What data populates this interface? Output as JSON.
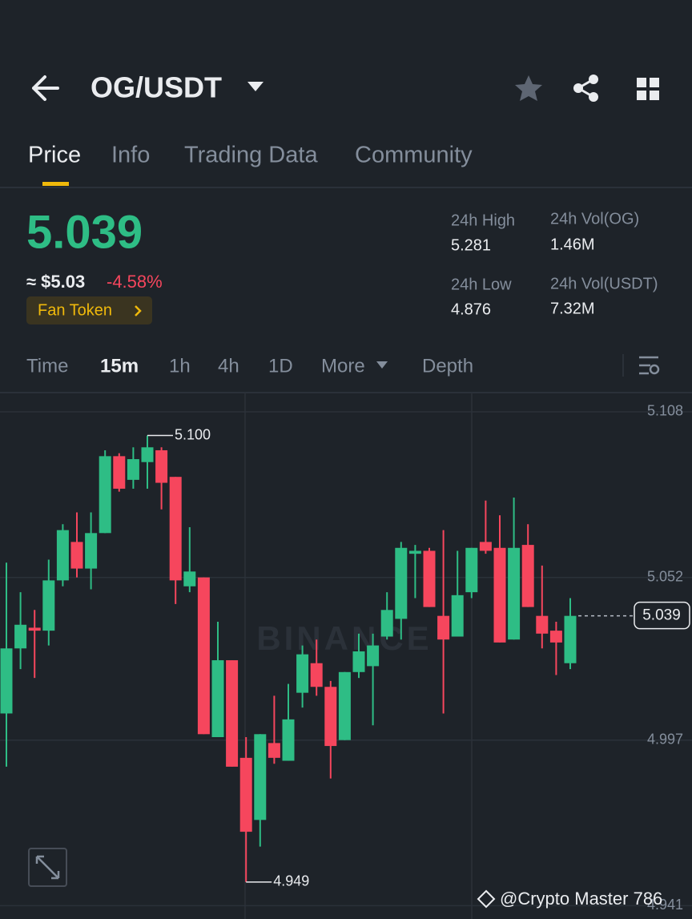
{
  "header": {
    "title": "OG/USDT"
  },
  "tabs": [
    "Price",
    "Info",
    "Trading Data",
    "Community"
  ],
  "ticker": {
    "price": "5.039",
    "fiat": "≈ $5.03",
    "change": "-4.58%",
    "tag": "Fan Token"
  },
  "stats": [
    {
      "label": "24h High",
      "value": "5.281"
    },
    {
      "label": "24h Vol(OG)",
      "value": "1.46M"
    },
    {
      "label": "24h Low",
      "value": "4.876"
    },
    {
      "label": "24h Vol(USDT)",
      "value": "7.32M"
    }
  ],
  "intervals": [
    "Time",
    "15m",
    "1h",
    "4h",
    "1D",
    "More",
    "Depth"
  ],
  "watermark": "BINANCE",
  "credit": "@Crypto Master 786",
  "chart_data": {
    "type": "candlestick",
    "up_color": "#2ebd85",
    "down_color": "#f6465d",
    "open": [
      5.006,
      5.028,
      5.035,
      5.034,
      5.051,
      5.064,
      5.055,
      5.067,
      5.093,
      5.085,
      5.091,
      5.095,
      5.086,
      5.049,
      5.052,
      4.998,
      5.024,
      4.991,
      4.97,
      4.996,
      4.99,
      5.013,
      5.023,
      5.015,
      4.997,
      5.02,
      5.022,
      5.032,
      5.038,
      5.06,
      5.061,
      5.039,
      5.032,
      5.047,
      5.064,
      5.062,
      5.031,
      5.063,
      5.039,
      5.034,
      5.023
    ],
    "high": [
      5.057,
      5.047,
      5.041,
      5.058,
      5.07,
      5.074,
      5.074,
      5.095,
      5.094,
      5.096,
      5.1,
      5.096,
      5.086,
      5.069,
      5.052,
      5.037,
      5.024,
      4.998,
      4.999,
      5.012,
      5.016,
      5.029,
      5.031,
      5.017,
      5.02,
      5.033,
      5.033,
      5.047,
      5.064,
      5.063,
      5.062,
      5.068,
      5.061,
      5.062,
      5.078,
      5.073,
      5.079,
      5.07,
      5.056,
      5.037,
      5.045
    ],
    "low": [
      4.988,
      5.021,
      5.018,
      5.029,
      5.049,
      5.052,
      5.048,
      5.067,
      5.081,
      5.082,
      5.082,
      5.075,
      5.043,
      5.047,
      4.999,
      4.998,
      4.988,
      4.949,
      4.961,
      4.989,
      4.99,
      5.008,
      5.012,
      4.984,
      4.997,
      5.018,
      5.002,
      5.031,
      5.031,
      5.045,
      5.042,
      5.006,
      5.032,
      5.045,
      5.06,
      5.03,
      5.031,
      5.042,
      5.028,
      5.019,
      5.021
    ],
    "close": [
      5.028,
      5.036,
      5.034,
      5.051,
      5.068,
      5.055,
      5.067,
      5.093,
      5.082,
      5.092,
      5.096,
      5.084,
      5.051,
      5.054,
      4.999,
      5.024,
      4.988,
      4.966,
      4.999,
      4.991,
      5.004,
      5.026,
      5.015,
      4.995,
      5.02,
      5.027,
      5.029,
      5.041,
      5.062,
      5.061,
      5.042,
      5.031,
      5.046,
      5.062,
      5.061,
      5.03,
      5.062,
      5.042,
      5.033,
      5.03,
      5.039
    ],
    "ylim": [
      4.9365,
      5.1145
    ],
    "yticks": [
      5.108,
      5.052,
      4.997,
      4.941
    ],
    "grid": true,
    "max_marker": {
      "value": 5.1,
      "label": "5.100"
    },
    "min_marker": 4.949,
    "last_price": 5.039
  }
}
